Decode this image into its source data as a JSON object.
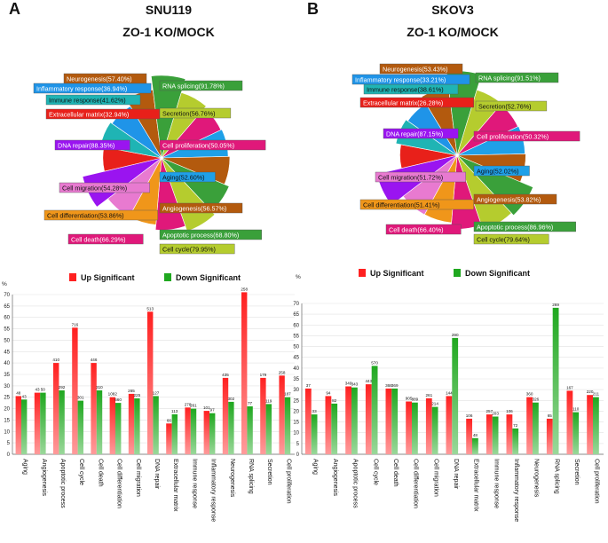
{
  "panels": [
    {
      "letter": "A",
      "cell_line": "SNU119",
      "comparison": "ZO-1 KO/MOCK"
    },
    {
      "letter": "B",
      "cell_line": "SKOV3",
      "comparison": "ZO-1 KO/MOCK"
    }
  ],
  "colors": {
    "up": "#ff2020",
    "down": "#1fa81f"
  },
  "chart_data": [
    {
      "type": "pie",
      "panel": "A",
      "slices": [
        {
          "label": "Neurogenesis(57.40%)",
          "color": "#b35a0e"
        },
        {
          "label": "RNA splicing(91.78%)",
          "color": "#3aa03a"
        },
        {
          "label": "Secretion(56.76%)",
          "color": "#b5cc2e"
        },
        {
          "label": "Cell proliferation(50.05%)",
          "color": "#e0187a"
        },
        {
          "label": "Aging(52.60%)",
          "color": "#1fa0e8"
        },
        {
          "label": "Angiogenesis(56.57%)",
          "color": "#b35a0e"
        },
        {
          "label": "Apoptotic process(68.80%)",
          "color": "#3aa03a"
        },
        {
          "label": "Cell cycle(79.95%)",
          "color": "#b5cc2e"
        },
        {
          "label": "Cell death(66.29%)",
          "color": "#e0187a"
        },
        {
          "label": "Cell differentiation(53.86%)",
          "color": "#f0961a"
        },
        {
          "label": "Cell migration(54.28%)",
          "color": "#e87ad0"
        },
        {
          "label": "DNA repair(88.35%)",
          "color": "#9a14f0"
        },
        {
          "label": "Extracellular matrix(32.94%)",
          "color": "#e8201a"
        },
        {
          "label": "Immune response(41.62%)",
          "color": "#1fb4b4"
        },
        {
          "label": "Inflammatory response(36.94%)",
          "color": "#1f94e8"
        }
      ]
    },
    {
      "type": "pie",
      "panel": "B",
      "slices": [
        {
          "label": "Neurogenesis(53.43%)",
          "color": "#b35a0e"
        },
        {
          "label": "RNA splicing(91.51%)",
          "color": "#3aa03a"
        },
        {
          "label": "Secretion(52.76%)",
          "color": "#b5cc2e"
        },
        {
          "label": "Cell proliferation(50.32%)",
          "color": "#e0187a"
        },
        {
          "label": "Aging(52.02%)",
          "color": "#1fa0e8"
        },
        {
          "label": "Angiogenesis(53.82%)",
          "color": "#b35a0e"
        },
        {
          "label": "Apoptotic process(86.96%)",
          "color": "#3aa03a"
        },
        {
          "label": "Cell cycle(79.64%)",
          "color": "#b5cc2e"
        },
        {
          "label": "Cell death(66.40%)",
          "color": "#e0187a"
        },
        {
          "label": "Cell differentiation(51.41%)",
          "color": "#f0961a"
        },
        {
          "label": "Cell migration(51.72%)",
          "color": "#e87ad0"
        },
        {
          "label": "DNA repair(87.15%)",
          "color": "#9a14f0"
        },
        {
          "label": "Extracellular matrix(26.28%)",
          "color": "#e8201a"
        },
        {
          "label": "Immune response(38.61%)",
          "color": "#1fb4b4"
        },
        {
          "label": "Inflammatory response(33.21%)",
          "color": "#1f94e8"
        }
      ]
    },
    {
      "type": "bar",
      "panel": "A",
      "ylabel": "%",
      "ylim": [
        0,
        70
      ],
      "yticks": [
        0,
        5,
        10,
        15,
        20,
        25,
        30,
        35,
        40,
        45,
        50,
        55,
        60,
        65,
        70
      ],
      "categories": [
        "Aging",
        "Angiogenesis",
        "Apoptotic process",
        "Cell cycle",
        "Cell death",
        "Cell differentiation",
        "Cell migration",
        "DNA repair",
        "Extracellular matrix",
        "Immune response",
        "Inflammatory response",
        "Neurogenesis",
        "RNA splicing",
        "Secretion",
        "Cell proliferation"
      ],
      "series": [
        {
          "name": "Up Significant",
          "values": [
            25.5,
            27.0,
            40.0,
            55.5,
            40.0,
            25.0,
            26.5,
            62.5,
            13.5,
            20.5,
            19.0,
            33.5,
            71.0,
            33.5,
            34.5
          ],
          "labels": [
            "48",
            "43",
            "410",
            "716",
            "446",
            "1082",
            "265",
            "513",
            "66",
            "278",
            "101",
            "435",
            "258",
            "179",
            "258"
          ]
        },
        {
          "name": "Down Significant",
          "values": [
            24.0,
            27.0,
            28.0,
            23.5,
            28.0,
            22.5,
            24.5,
            25.5,
            17.5,
            20.0,
            18.0,
            23.0,
            21.0,
            22.0,
            25.0
          ],
          "labels": [
            "43",
            "50",
            "292",
            "301",
            "310",
            "660",
            "225",
            "127",
            "113",
            "261",
            "97",
            "302",
            "77",
            "119",
            "187"
          ]
        }
      ]
    },
    {
      "type": "bar",
      "panel": "B",
      "ylabel": "%",
      "ylim": [
        0,
        70
      ],
      "yticks": [
        0,
        5,
        10,
        15,
        20,
        25,
        30,
        35,
        40,
        45,
        50,
        55,
        60,
        65,
        70
      ],
      "categories": [
        "Aging",
        "Angiogenesis",
        "Apoptotic process",
        "Cell cycle",
        "Cell death",
        "Cell differentiation",
        "Cell migration",
        "DNA repair",
        "Extracellular matrix",
        "Immune response",
        "Inflammatory response",
        "Neurogenesis",
        "RNA splicing",
        "Secretion",
        "Cell proliferation"
      ],
      "series": [
        {
          "name": "Up Significant",
          "values": [
            30.5,
            27.0,
            31.5,
            32.5,
            30.5,
            24.5,
            26.0,
            27.0,
            16.5,
            18.5,
            18.5,
            26.5,
            16.5,
            29.5,
            27.5
          ],
          "labels": [
            "37",
            "94",
            "349",
            "443",
            "368",
            "905",
            "261",
            "144",
            "106",
            "257",
            "106",
            "360",
            "65",
            "167",
            "220"
          ]
        },
        {
          "name": "Down Significant",
          "values": [
            18.5,
            23.5,
            31.0,
            41.0,
            30.5,
            24.0,
            22.0,
            54.0,
            7.5,
            17.5,
            12.0,
            24.0,
            68.0,
            19.5,
            26.5
          ],
          "labels": [
            "33",
            "82",
            "343",
            "570",
            "369",
            "889",
            "214",
            "290",
            "48",
            "203",
            "72",
            "326",
            "269",
            "110",
            "211"
          ]
        }
      ]
    }
  ]
}
